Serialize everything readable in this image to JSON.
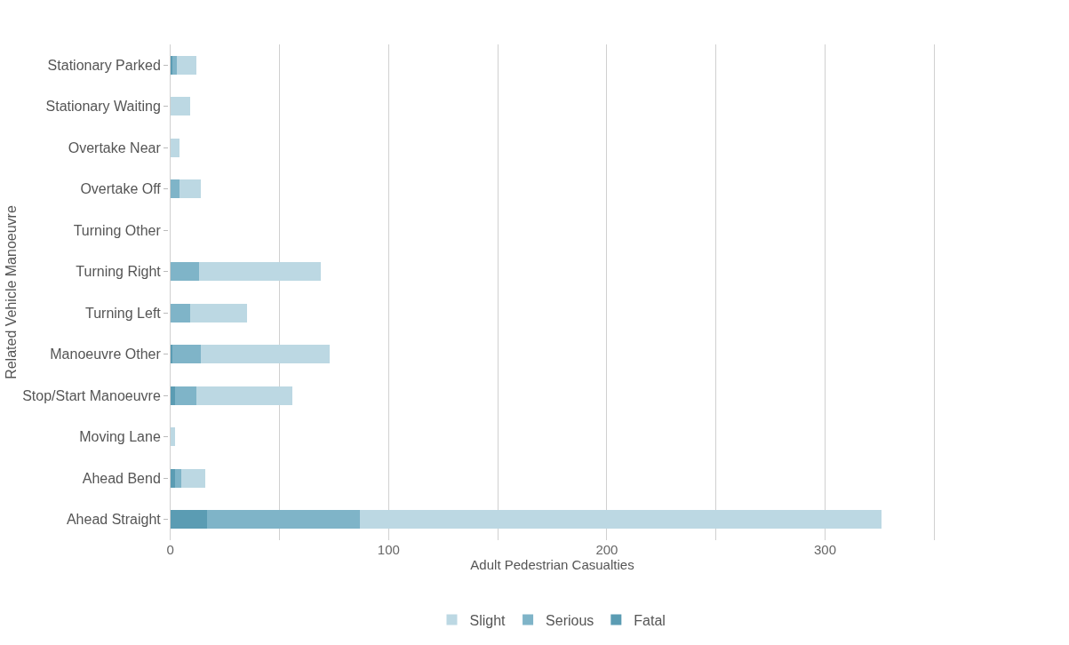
{
  "chart_data": {
    "type": "bar",
    "orientation": "horizontal",
    "stacked": true,
    "xlabel": "Adult Pedestrian Casualties",
    "ylabel": "Related Vehicle Manoeuvre",
    "categories": [
      "Stationary Parked",
      "Stationary Waiting",
      "Overtake Near",
      "Overtake Off",
      "Turning Other",
      "Turning Right",
      "Turning Left",
      "Manoeuvre Other",
      "Stop/Start Manoeuvre",
      "Moving Lane",
      "Ahead Bend",
      "Ahead Straight"
    ],
    "series": [
      {
        "name": "Fatal",
        "color": "#5b9cb3",
        "values": [
          1,
          0,
          0,
          0,
          0,
          0,
          0,
          1,
          2,
          0,
          2,
          17
        ]
      },
      {
        "name": "Serious",
        "color": "#7fb4c8",
        "values": [
          2,
          0,
          0,
          4,
          0,
          13,
          9,
          13,
          10,
          0,
          3,
          70
        ]
      },
      {
        "name": "Slight",
        "color": "#bcd8e3",
        "values": [
          9,
          9,
          4,
          10,
          0,
          56,
          26,
          59,
          44,
          2,
          11,
          239
        ]
      }
    ],
    "xlim": [
      0,
      350
    ],
    "xticks": [
      0,
      {
        "value": 50,
        "label": null
      },
      100,
      {
        "value": 150,
        "label": null
      },
      200,
      {
        "value": 250,
        "label": null
      },
      300,
      {
        "value": 350,
        "label": null
      }
    ],
    "grid": "x",
    "legend": "bottom"
  }
}
